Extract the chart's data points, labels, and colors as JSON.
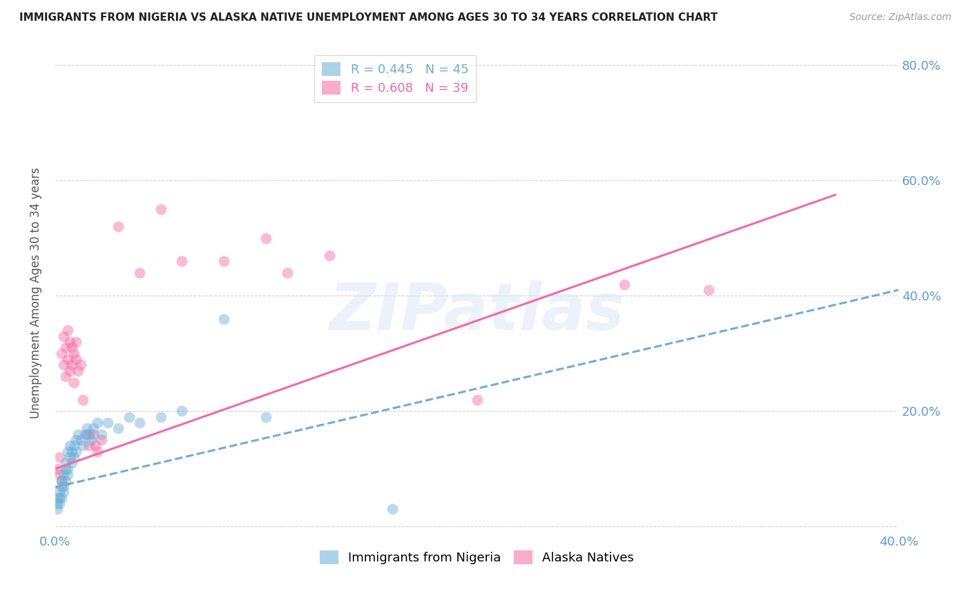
{
  "title": "IMMIGRANTS FROM NIGERIA VS ALASKA NATIVE UNEMPLOYMENT AMONG AGES 30 TO 34 YEARS CORRELATION CHART",
  "source": "Source: ZipAtlas.com",
  "ylabel": "Unemployment Among Ages 30 to 34 years",
  "xlim": [
    0.0,
    0.4
  ],
  "ylim": [
    -0.01,
    0.82
  ],
  "yticks": [
    0.0,
    0.2,
    0.4,
    0.6,
    0.8
  ],
  "ytick_labels": [
    "",
    "20.0%",
    "40.0%",
    "60.0%",
    "80.0%"
  ],
  "watermark": "ZIPatlas",
  "legend_entries": [
    {
      "label": "R = 0.445   N = 45",
      "color": "#6baed6"
    },
    {
      "label": "R = 0.608   N = 39",
      "color": "#f768a1"
    }
  ],
  "nigeria_scatter": [
    [
      0.001,
      0.04
    ],
    [
      0.001,
      0.05
    ],
    [
      0.001,
      0.03
    ],
    [
      0.002,
      0.06
    ],
    [
      0.002,
      0.04
    ],
    [
      0.002,
      0.05
    ],
    [
      0.003,
      0.07
    ],
    [
      0.003,
      0.05
    ],
    [
      0.003,
      0.08
    ],
    [
      0.004,
      0.06
    ],
    [
      0.004,
      0.09
    ],
    [
      0.004,
      0.07
    ],
    [
      0.005,
      0.1
    ],
    [
      0.005,
      0.08
    ],
    [
      0.005,
      0.11
    ],
    [
      0.006,
      0.1
    ],
    [
      0.006,
      0.13
    ],
    [
      0.006,
      0.09
    ],
    [
      0.007,
      0.12
    ],
    [
      0.007,
      0.14
    ],
    [
      0.008,
      0.13
    ],
    [
      0.008,
      0.11
    ],
    [
      0.009,
      0.14
    ],
    [
      0.009,
      0.12
    ],
    [
      0.01,
      0.15
    ],
    [
      0.01,
      0.13
    ],
    [
      0.011,
      0.16
    ],
    [
      0.012,
      0.15
    ],
    [
      0.013,
      0.14
    ],
    [
      0.014,
      0.16
    ],
    [
      0.015,
      0.17
    ],
    [
      0.016,
      0.16
    ],
    [
      0.017,
      0.15
    ],
    [
      0.018,
      0.17
    ],
    [
      0.02,
      0.18
    ],
    [
      0.022,
      0.16
    ],
    [
      0.025,
      0.18
    ],
    [
      0.03,
      0.17
    ],
    [
      0.035,
      0.19
    ],
    [
      0.04,
      0.18
    ],
    [
      0.05,
      0.19
    ],
    [
      0.06,
      0.2
    ],
    [
      0.08,
      0.36
    ],
    [
      0.1,
      0.19
    ],
    [
      0.16,
      0.03
    ]
  ],
  "alaska_scatter": [
    [
      0.001,
      0.1
    ],
    [
      0.002,
      0.09
    ],
    [
      0.002,
      0.12
    ],
    [
      0.003,
      0.08
    ],
    [
      0.003,
      0.3
    ],
    [
      0.004,
      0.28
    ],
    [
      0.004,
      0.33
    ],
    [
      0.005,
      0.26
    ],
    [
      0.005,
      0.31
    ],
    [
      0.006,
      0.29
    ],
    [
      0.006,
      0.34
    ],
    [
      0.007,
      0.32
    ],
    [
      0.007,
      0.27
    ],
    [
      0.008,
      0.31
    ],
    [
      0.008,
      0.28
    ],
    [
      0.009,
      0.3
    ],
    [
      0.009,
      0.25
    ],
    [
      0.01,
      0.29
    ],
    [
      0.01,
      0.32
    ],
    [
      0.011,
      0.27
    ],
    [
      0.012,
      0.28
    ],
    [
      0.013,
      0.22
    ],
    [
      0.015,
      0.16
    ],
    [
      0.016,
      0.14
    ],
    [
      0.018,
      0.16
    ],
    [
      0.019,
      0.14
    ],
    [
      0.02,
      0.13
    ],
    [
      0.022,
      0.15
    ],
    [
      0.03,
      0.52
    ],
    [
      0.04,
      0.44
    ],
    [
      0.05,
      0.55
    ],
    [
      0.06,
      0.46
    ],
    [
      0.08,
      0.46
    ],
    [
      0.1,
      0.5
    ],
    [
      0.11,
      0.44
    ],
    [
      0.13,
      0.47
    ],
    [
      0.2,
      0.22
    ],
    [
      0.27,
      0.42
    ],
    [
      0.31,
      0.41
    ]
  ],
  "nigeria_line_x": [
    0.0,
    0.4
  ],
  "nigeria_line_y": [
    0.068,
    0.41
  ],
  "alaska_line_x": [
    0.0,
    0.37
  ],
  "alaska_line_y": [
    0.1,
    0.575
  ],
  "nigeria_color": "#6baed6",
  "alaska_color": "#f768a1",
  "bg_color": "#ffffff",
  "grid_color": "#d0d0d0",
  "title_color": "#222222",
  "tick_color": "#5b9bd5"
}
